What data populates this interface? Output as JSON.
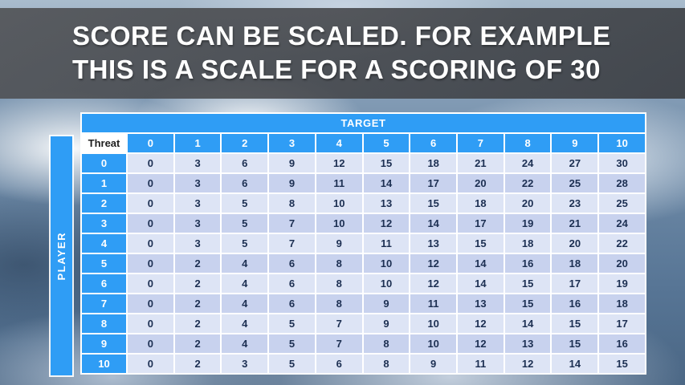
{
  "title": {
    "line1": "SCORE CAN BE SCALED. FOR EXAMPLE",
    "line2": "THIS IS A SCALE FOR A SCORING OF 30"
  },
  "colors": {
    "accent_blue": "#2f9df5",
    "row_light": "#dde4f5",
    "row_dark": "#c8d2ee",
    "cell_text": "#1c2f52",
    "title_band": "#3a3c40",
    "title_text": "#ffffff"
  },
  "chart_data": {
    "type": "table",
    "title": "SCORE CAN BE SCALED. FOR EXAMPLE THIS IS A SCALE FOR A SCORING OF 30",
    "target_label": "TARGET",
    "player_label": "PLAYER",
    "corner_label": "Threat",
    "column_headers": [
      "0",
      "1",
      "2",
      "3",
      "4",
      "5",
      "6",
      "7",
      "8",
      "9",
      "10"
    ],
    "rows": [
      {
        "header": "0",
        "values": [
          0,
          3,
          6,
          9,
          12,
          15,
          18,
          21,
          24,
          27,
          30
        ]
      },
      {
        "header": "1",
        "values": [
          0,
          3,
          6,
          9,
          11,
          14,
          17,
          20,
          22,
          25,
          28
        ]
      },
      {
        "header": "2",
        "values": [
          0,
          3,
          5,
          8,
          10,
          13,
          15,
          18,
          20,
          23,
          25
        ]
      },
      {
        "header": "3",
        "values": [
          0,
          3,
          5,
          7,
          10,
          12,
          14,
          17,
          19,
          21,
          24
        ]
      },
      {
        "header": "4",
        "values": [
          0,
          3,
          5,
          7,
          9,
          11,
          13,
          15,
          18,
          20,
          22
        ]
      },
      {
        "header": "5",
        "values": [
          0,
          2,
          4,
          6,
          8,
          10,
          12,
          14,
          16,
          18,
          20
        ]
      },
      {
        "header": "6",
        "values": [
          0,
          2,
          4,
          6,
          8,
          10,
          12,
          14,
          15,
          17,
          19
        ]
      },
      {
        "header": "7",
        "values": [
          0,
          2,
          4,
          6,
          8,
          9,
          11,
          13,
          15,
          16,
          18
        ]
      },
      {
        "header": "8",
        "values": [
          0,
          2,
          4,
          5,
          7,
          9,
          10,
          12,
          14,
          15,
          17
        ]
      },
      {
        "header": "9",
        "values": [
          0,
          2,
          4,
          5,
          7,
          8,
          10,
          12,
          13,
          15,
          16
        ]
      },
      {
        "header": "10",
        "values": [
          0,
          2,
          3,
          5,
          6,
          8,
          9,
          11,
          12,
          14,
          15
        ]
      }
    ]
  }
}
